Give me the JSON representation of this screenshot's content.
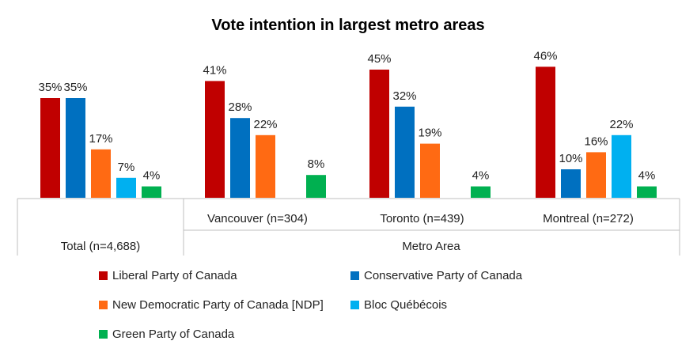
{
  "chart_data": {
    "type": "bar",
    "title": "Vote intention in largest metro areas",
    "groups": [
      {
        "label": "Total (n=4,688)",
        "values": [
          35,
          35,
          17,
          7,
          4
        ]
      },
      {
        "label": "Vancouver (n=304)",
        "values": [
          41,
          28,
          22,
          null,
          8
        ]
      },
      {
        "label": "Toronto (n=439)",
        "values": [
          45,
          32,
          19,
          null,
          4
        ]
      },
      {
        "label": "Montreal (n=272)",
        "values": [
          46,
          10,
          16,
          22,
          4
        ]
      }
    ],
    "group_header": "Metro Area",
    "series": [
      {
        "name": "Liberal Party of Canada",
        "color": "#C00000"
      },
      {
        "name": "Conservative Party of Canada",
        "color": "#0070C0"
      },
      {
        "name": "New Democratic Party of Canada [NDP]",
        "color": "#FF6A13"
      },
      {
        "name": "Bloc Québécois",
        "color": "#00B0F0"
      },
      {
        "name": "Green Party of Canada",
        "color": "#00B050"
      }
    ],
    "value_suffix": "%",
    "ylim": [
      0,
      50
    ],
    "grid": false,
    "legend_position": "bottom"
  }
}
